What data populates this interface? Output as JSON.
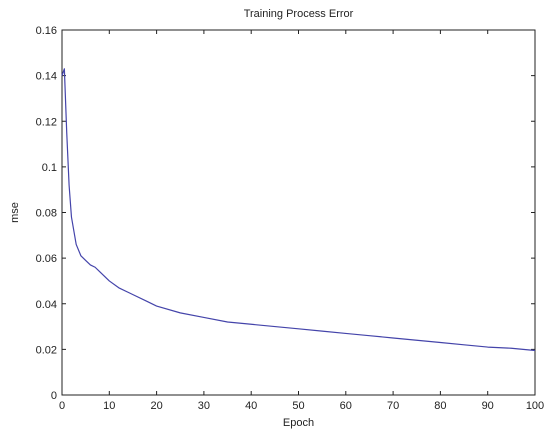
{
  "chart_data": {
    "type": "line",
    "title": "Training Process Error",
    "xlabel": "Epoch",
    "ylabel": "mse",
    "xlim": [
      0,
      100
    ],
    "ylim": [
      0,
      0.15
    ],
    "xticks": [
      0,
      10,
      20,
      30,
      40,
      50,
      60,
      70,
      80,
      90,
      100
    ],
    "yticks": [
      0,
      0.02,
      0.04,
      0.06,
      0.08,
      0.1,
      0.12,
      0.14,
      0.16
    ],
    "grid": false,
    "line_color": "#4444aa",
    "series": [
      {
        "x": [
          0,
          0.5,
          1,
          1.5,
          2,
          3,
          4,
          5,
          6,
          7,
          8,
          10,
          12,
          15,
          18,
          20,
          25,
          30,
          35,
          40,
          45,
          50,
          55,
          60,
          65,
          70,
          75,
          80,
          85,
          90,
          95,
          100
        ],
        "y": [
          0.14,
          0.143,
          0.115,
          0.092,
          0.078,
          0.066,
          0.061,
          0.059,
          0.057,
          0.056,
          0.054,
          0.05,
          0.047,
          0.044,
          0.041,
          0.039,
          0.036,
          0.034,
          0.032,
          0.031,
          0.03,
          0.029,
          0.028,
          0.027,
          0.026,
          0.025,
          0.024,
          0.023,
          0.022,
          0.021,
          0.0205,
          0.0195
        ]
      }
    ]
  }
}
